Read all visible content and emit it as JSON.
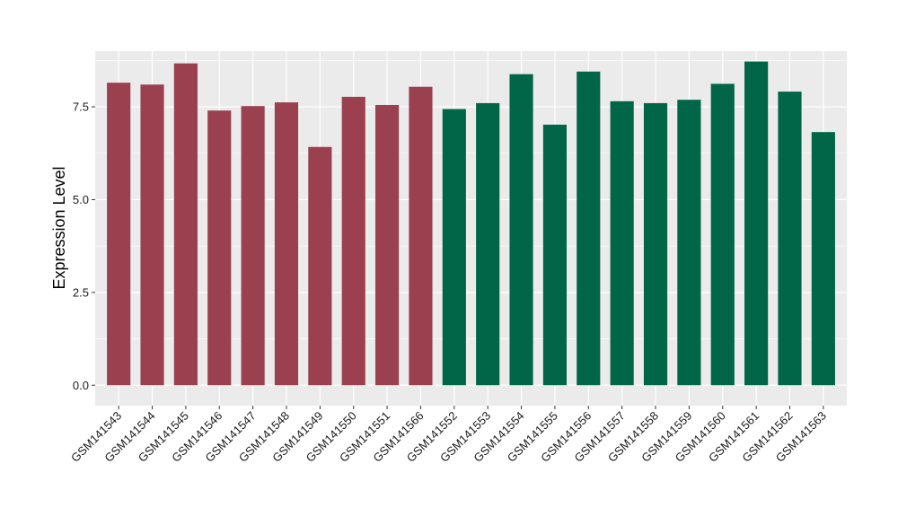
{
  "chart_data": {
    "type": "bar",
    "ylabel": "Expression Level",
    "xlabel": "",
    "ylim": [
      -0.55,
      9.0
    ],
    "yticks": [
      0.0,
      2.5,
      5.0,
      7.5
    ],
    "ytick_labels": [
      "0.0",
      "2.5",
      "5.0",
      "7.5"
    ],
    "grid": true,
    "legend": "none",
    "panel_background": "#ebebeb",
    "grid_color": "#ffffff",
    "groups": [
      {
        "color": "#9a404f",
        "start": 0,
        "end": 9
      },
      {
        "color": "#006647",
        "start": 10,
        "end": 21
      }
    ],
    "categories": [
      "GSM141543",
      "GSM141544",
      "GSM141545",
      "GSM141546",
      "GSM141547",
      "GSM141548",
      "GSM141549",
      "GSM141550",
      "GSM141551",
      "GSM141566",
      "GSM141552",
      "GSM141553",
      "GSM141554",
      "GSM141555",
      "GSM141556",
      "GSM141557",
      "GSM141558",
      "GSM141559",
      "GSM141560",
      "GSM141561",
      "GSM141562",
      "GSM141563"
    ],
    "values": [
      8.15,
      8.1,
      8.67,
      7.4,
      7.52,
      7.62,
      6.42,
      7.77,
      7.55,
      8.04,
      7.44,
      7.6,
      8.38,
      7.02,
      8.45,
      7.65,
      7.6,
      7.69,
      8.12,
      8.72,
      7.91,
      6.82
    ]
  }
}
